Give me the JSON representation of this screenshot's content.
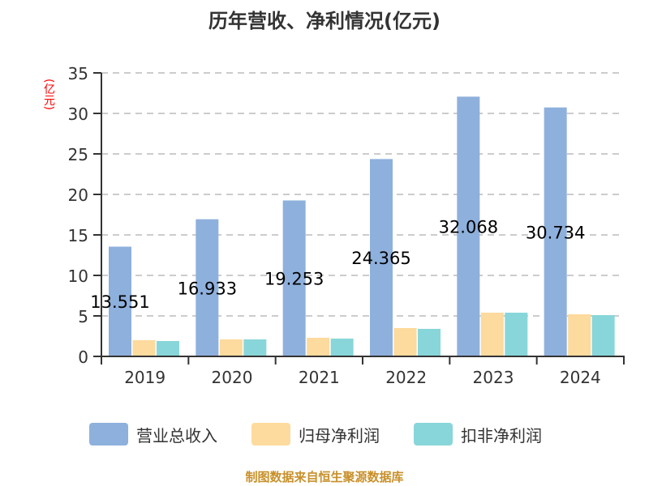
{
  "title": "历年营收、净利情况(亿元)",
  "y_axis_unit_label": "(亿元)",
  "footer": "制图数据来自恒生聚源数据库",
  "legend": [
    {
      "label": "营业总收入",
      "color": "#8eb0dc"
    },
    {
      "label": "归母净利润",
      "color": "#fdda9d"
    },
    {
      "label": "扣非净利润",
      "color": "#88d6d9"
    }
  ],
  "colors": {
    "axis": "#333333",
    "grid": "#cccccc",
    "tick_text": "#333333",
    "data_label": "#000000",
    "unit_label": "#ff0000",
    "footer": "#c8902a"
  },
  "chart_data": {
    "type": "bar",
    "title": "历年营收、净利情况(亿元)",
    "xlabel": "",
    "ylabel": "(亿元)",
    "categories": [
      "2019",
      "2020",
      "2021",
      "2022",
      "2023",
      "2024"
    ],
    "series": [
      {
        "name": "营业总收入",
        "values": [
          13.551,
          16.933,
          19.253,
          24.365,
          32.068,
          30.734
        ],
        "data_labels": [
          "13.551",
          "16.933",
          "19.253",
          "24.365",
          "32.068",
          "30.734"
        ]
      },
      {
        "name": "归母净利润",
        "values": [
          2.0,
          2.1,
          2.3,
          3.5,
          5.4,
          5.2
        ]
      },
      {
        "name": "扣非净利润",
        "values": [
          1.9,
          2.1,
          2.2,
          3.4,
          5.4,
          5.1
        ]
      }
    ],
    "ylim": [
      0,
      35
    ],
    "yticks": [
      0,
      5,
      10,
      15,
      20,
      25,
      30,
      35
    ],
    "grid": "horizontal dashed",
    "legend_position": "bottom"
  }
}
